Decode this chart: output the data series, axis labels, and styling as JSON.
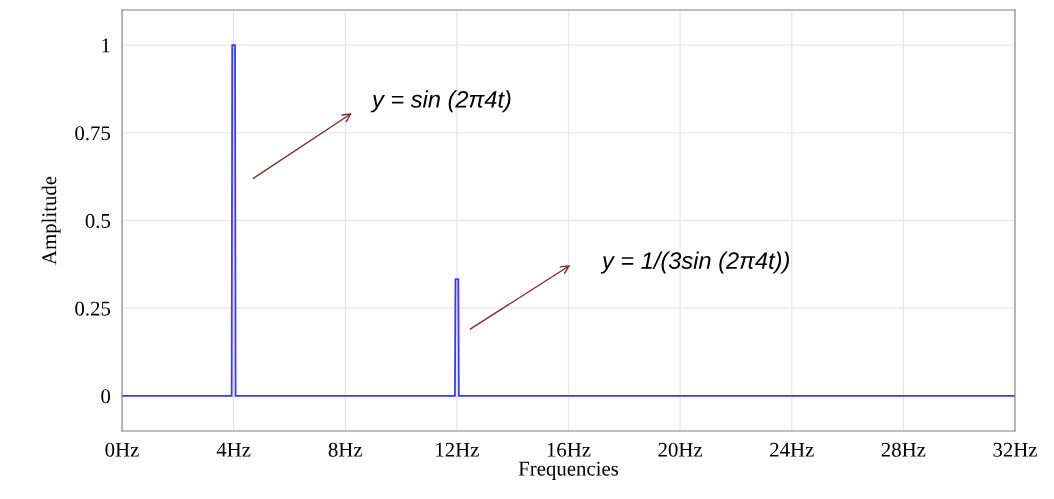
{
  "chart_data": {
    "type": "line",
    "xlabel": "Frequencies",
    "ylabel": "Amplitude",
    "x": [
      0,
      3.93,
      3.95,
      4.05,
      4.07,
      11.93,
      11.95,
      12.05,
      12.07,
      32
    ],
    "series": [
      {
        "color": "#3a3aee",
        "values": [
          0,
          0,
          1,
          1,
          0,
          0,
          0.333,
          0.333,
          0,
          0
        ]
      }
    ],
    "xlim": [
      0,
      32
    ],
    "ylim": [
      -0.1,
      1.1
    ],
    "xticks": [
      {
        "value": 0,
        "label": "0Hz"
      },
      {
        "value": 4,
        "label": "4Hz"
      },
      {
        "value": 8,
        "label": "8Hz"
      },
      {
        "value": 12,
        "label": "12Hz"
      },
      {
        "value": 16,
        "label": "16Hz"
      },
      {
        "value": 20,
        "label": "20Hz"
      },
      {
        "value": 24,
        "label": "24Hz"
      },
      {
        "value": 28,
        "label": "28Hz"
      },
      {
        "value": 32,
        "label": "32Hz"
      }
    ],
    "yticks": [
      0,
      0.25,
      0.5,
      0.75,
      1
    ],
    "grid": true,
    "marker": "none",
    "line_style": "solid",
    "annotations": [
      "y = sin (2π4t)",
      "y = 1/(3sin (2π4t))"
    ]
  }
}
